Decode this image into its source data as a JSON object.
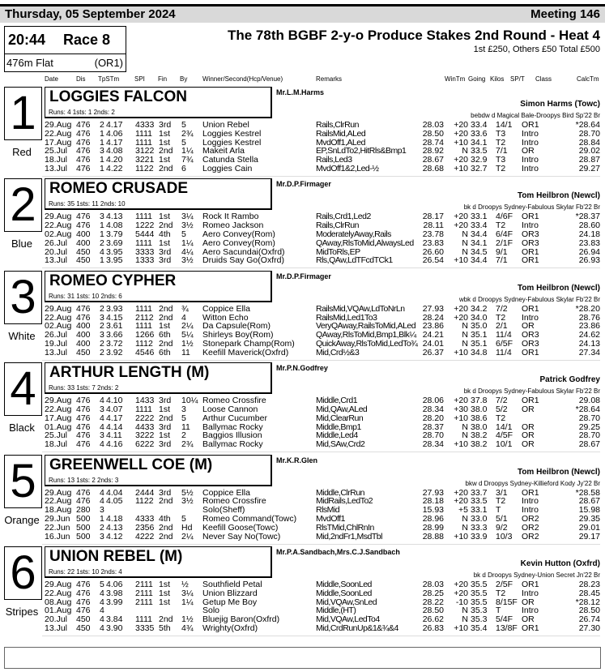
{
  "header": {
    "date": "Thursday, 05 September 2024",
    "meeting": "Meeting 146"
  },
  "race": {
    "time": "20:44",
    "number": "Race 8",
    "distance": "476m Flat",
    "grade": "(OR1)",
    "title": "The 78th BGBF 2-y-o Produce Stakes 2nd Round - Heat 4",
    "prize": "1st £250, Others £50 Total £500"
  },
  "columns": {
    "date": "Date",
    "dis": "Dis",
    "tpstm": "TpSTm",
    "spi": "SPI",
    "fin": "Fin",
    "by": "By",
    "winner": "Winner/Second(Hcp/Venue)",
    "remarks": "Remarks",
    "wintm": "WinTm",
    "going": "Going",
    "kilos": "Kilos",
    "spt": "SP/T",
    "class": "Class",
    "calctm": "CalcTm"
  },
  "runners": [
    {
      "trap": "1",
      "colour": "Red",
      "name": "LOGGIES FALCON",
      "runs": "Runs: 4 1sts: 1 2nds: 2",
      "owner": "Mr.L.M.Harms",
      "trainer": "Simon Harms (Towc)",
      "breeding": "bebdw d Magical Bale-Droopys Bird Sp'22 Br",
      "form": [
        [
          "29.Aug",
          "476",
          "2",
          "4.17",
          "4333",
          "3rd",
          "5",
          "Union Rebel",
          "Rails,ClrRun",
          "28.03",
          "+20",
          "33.4",
          "14/1",
          "OR1",
          "*28.64"
        ],
        [
          "22.Aug",
          "476",
          "1",
          "4.06",
          "1111",
          "1st",
          "2¾",
          "Loggies Kestrel",
          "RailsMid,ALed",
          "28.50",
          "+20",
          "33.6",
          "T3",
          "Intro",
          "28.70"
        ],
        [
          "17.Aug",
          "476",
          "1",
          "4.17",
          "1111",
          "1st",
          "5",
          "Loggies Kestrel",
          "MvdOff1,ALed",
          "28.74",
          "+10",
          "34.1",
          "T2",
          "Intro",
          "28.84"
        ],
        [
          "25.Jul",
          "476",
          "3",
          "4.08",
          "3122",
          "2nd",
          "1¼",
          "Makeit Arla",
          "EP,SnLdTo2,HitRls&Bmp1",
          "28.92",
          "N",
          "33.5",
          "7/1",
          "OR",
          "29.02"
        ],
        [
          "18.Jul",
          "476",
          "1",
          "4.20",
          "3221",
          "1st",
          "7¾",
          "Catunda Stella",
          "Rails,Led3",
          "28.67",
          "+20",
          "32.9",
          "T3",
          "Intro",
          "28.87"
        ],
        [
          "13.Jul",
          "476",
          "1",
          "4.22",
          "1122",
          "2nd",
          "6",
          "Loggies Cain",
          "MvdOff1&2,Led-½",
          "28.68",
          "+10",
          "32.7",
          "T2",
          "Intro",
          "29.27"
        ]
      ]
    },
    {
      "trap": "2",
      "colour": "Blue",
      "name": "ROMEO CRUSADE",
      "runs": "Runs: 35 1sts: 11 2nds: 10",
      "owner": "Mr.D.P.Firmager",
      "trainer": "Tom Heilbron (Newcl)",
      "breeding": "bk d Droopys Sydney-Fabulous Skylar Fb'22 Br",
      "form": [
        [
          "29.Aug",
          "476",
          "3",
          "4.13",
          "1111",
          "1st",
          "3¼",
          "Rock It Rambo",
          "Rails,Crd1,Led2",
          "28.17",
          "+20",
          "33.1",
          "4/6F",
          "OR1",
          "*28.37"
        ],
        [
          "22.Aug",
          "476",
          "1",
          "4.08",
          "1222",
          "2nd",
          "3½",
          "Romeo Jackson",
          "Rails,ClrRun",
          "28.11",
          "+20",
          "33.4",
          "T2",
          "Intro",
          "28.60"
        ],
        [
          "02.Aug",
          "400",
          "1",
          "3.79",
          "5444",
          "4th",
          "5",
          "Aero Convey(Rom)",
          "ModeratelyAway,Rails",
          "23.78",
          "N",
          "34.4",
          "6/4F",
          "OR3",
          "24.18"
        ],
        [
          "26.Jul",
          "400",
          "2",
          "3.69",
          "1111",
          "1st",
          "1¼",
          "Aero Convey(Rom)",
          "QAway,RlsToMid,AlwaysLed",
          "23.83",
          "N",
          "34.1",
          "2/1F",
          "OR3",
          "23.83"
        ],
        [
          "20.Jul",
          "450",
          "4",
          "3.95",
          "3333",
          "3rd",
          "4¼",
          "Aero Sacundai(Oxfrd)",
          "MidToRls,EP",
          "26.60",
          "N",
          "34.5",
          "9/1",
          "OR1",
          "26.94"
        ],
        [
          "13.Jul",
          "450",
          "1",
          "3.95",
          "1333",
          "3rd",
          "3½",
          "Druids Say Go(Oxfrd)",
          "Rls,QAw,LdTFcdTCk1",
          "26.54",
          "+10",
          "34.4",
          "7/1",
          "OR1",
          "26.93"
        ]
      ]
    },
    {
      "trap": "3",
      "colour": "White",
      "name": "ROMEO CYPHER",
      "runs": "Runs: 31 1sts: 10 2nds: 6",
      "owner": "Mr.D.P.Firmager",
      "trainer": "Tom Heilbron (Newcl)",
      "breeding": "wbk d Droopys Sydney-Fabulous Skylar Fb'22 Br",
      "form": [
        [
          "29.Aug",
          "476",
          "2",
          "3.93",
          "1111",
          "2nd",
          "¾",
          "Coppice Ella",
          "RailsMid,VQAw,LdToNrLn",
          "27.93",
          "+20",
          "34.2",
          "7/2",
          "OR1",
          "*28.20"
        ],
        [
          "22.Aug",
          "476",
          "3",
          "4.15",
          "2112",
          "2nd",
          "4",
          "Witton Echo",
          "RailsMid,Led1To3",
          "28.24",
          "+20",
          "34.0",
          "T2",
          "Intro",
          "28.76"
        ],
        [
          "02.Aug",
          "400",
          "2",
          "3.61",
          "1111",
          "1st",
          "2¼",
          "Da Capsule(Rom)",
          "VeryQAway,RailsToMid,ALed",
          "23.86",
          "N",
          "35.0",
          "2/1",
          "OR",
          "23.86"
        ],
        [
          "26.Jul",
          "400",
          "3",
          "3.66",
          "1266",
          "6th",
          "5¼",
          "Shirleys Boy(Rom)",
          "QAway,RlsToMid,Bmp1,Blk¼",
          "24.21",
          "N",
          "35.1",
          "11/4",
          "OR3",
          "24.62"
        ],
        [
          "19.Jul",
          "400",
          "2",
          "3.72",
          "1112",
          "2nd",
          "1½",
          "Stonepark Champ(Rom)",
          "QuickAway,RlsToMid,LedTo¾",
          "24.01",
          "N",
          "35.1",
          "6/5F",
          "OR3",
          "24.13"
        ],
        [
          "13.Jul",
          "450",
          "2",
          "3.92",
          "4546",
          "6th",
          "11",
          "Keefill Maverick(Oxfrd)",
          "Mid,Crd½&3",
          "26.37",
          "+10",
          "34.8",
          "11/4",
          "OR1",
          "27.34"
        ]
      ]
    },
    {
      "trap": "4",
      "colour": "Black",
      "name": "ARTHUR LENGTH (M)",
      "runs": "Runs: 33 1sts: 7 2nds: 2",
      "owner": "Mr.P.N.Godfrey",
      "trainer": "Patrick Godfrey",
      "breeding": "bk d Droopys Sydney-Fabulous Skylar Fb'22 Br",
      "form": [
        [
          "29.Aug",
          "476",
          "4",
          "4.10",
          "1433",
          "3rd",
          "10¼",
          "Romeo Crossfire",
          "Middle,Crd1",
          "28.06",
          "+20",
          "37.8",
          "7/2",
          "OR1",
          "29.08"
        ],
        [
          "22.Aug",
          "476",
          "3",
          "4.07",
          "1111",
          "1st",
          "3",
          "Loose Cannon",
          "Mid,QAw,ALed",
          "28.34",
          "+30",
          "38.0",
          "5/2",
          "OR",
          "*28.64"
        ],
        [
          "17.Aug",
          "476",
          "4",
          "4.17",
          "2222",
          "2nd",
          "5",
          "Arthur Cucumber",
          "Mid,ClearRun",
          "28.20",
          "+10",
          "38.6",
          "T2",
          "",
          "28.70"
        ],
        [
          "01.Aug",
          "476",
          "4",
          "4.14",
          "4433",
          "3rd",
          "11",
          "Ballymac Rocky",
          "Middle,Bmp1",
          "28.37",
          "N",
          "38.0",
          "14/1",
          "OR",
          "29.25"
        ],
        [
          "25.Jul",
          "476",
          "3",
          "4.11",
          "3222",
          "1st",
          "2",
          "Baggios Illusion",
          "Middle,Led4",
          "28.70",
          "N",
          "38.2",
          "4/5F",
          "OR",
          "28.70"
        ],
        [
          "18.Jul",
          "476",
          "4",
          "4.16",
          "6222",
          "3rd",
          "2¾",
          "Ballymac Rocky",
          "Mid,SAw,Crd2",
          "28.34",
          "+10",
          "38.2",
          "10/1",
          "OR",
          "28.67"
        ]
      ]
    },
    {
      "trap": "5",
      "colour": "Orange",
      "name": "GREENWELL COE (M)",
      "runs": "Runs: 13 1sts: 2 2nds: 3",
      "owner": "Mr.K.R.Glen",
      "trainer": "Tom Heilbron (Newcl)",
      "breeding": "bkw d Droopys Sydney-Killieford Kody Jy'22 Br",
      "form": [
        [
          "29.Aug",
          "476",
          "4",
          "4.04",
          "2444",
          "3rd",
          "5½",
          "Coppice Ella",
          "Middle,ClrRun",
          "27.93",
          "+20",
          "33.7",
          "3/1",
          "OR1",
          "*28.58"
        ],
        [
          "22.Aug",
          "476",
          "4",
          "4.05",
          "1122",
          "2nd",
          "3½",
          "Romeo Crossfire",
          "MidRails,LedTo2",
          "28.18",
          "+20",
          "33.5",
          "T2",
          "Intro",
          "28.67"
        ],
        [
          "18.Aug",
          "280",
          "3",
          "",
          "",
          "",
          "",
          "Solo(Sheff)",
          "RlsMid",
          "15.93",
          "+5",
          "33.1",
          "T",
          "Intro",
          "15.98"
        ],
        [
          "29.Jun",
          "500",
          "1",
          "4.18",
          "4333",
          "4th",
          "5",
          "Romeo Command(Towc)",
          "MvdOff1",
          "28.96",
          "N",
          "33.0",
          "5/1",
          "OR2",
          "29.35"
        ],
        [
          "22.Jun",
          "500",
          "2",
          "4.13",
          "2356",
          "2nd",
          "Hd",
          "Keefill Goose(Towc)",
          "RlsTMid,ChlRnIn",
          "28.99",
          "N",
          "33.3",
          "9/2",
          "OR2",
          "29.01"
        ],
        [
          "16.Jun",
          "500",
          "3",
          "4.12",
          "4222",
          "2nd",
          "2¼",
          "Never Say No(Towc)",
          "Mid,2ndFr1,MsdTbl",
          "28.88",
          "+10",
          "33.9",
          "10/3",
          "OR2",
          "29.17"
        ]
      ]
    },
    {
      "trap": "6",
      "colour": "Stripes",
      "name": "UNION REBEL (M)",
      "runs": "Runs: 22 1sts: 10 2nds: 4",
      "owner": "Mr.P.A.Sandbach,Mrs.C.J.Sandbach",
      "trainer": "Kevin Hutton (Oxfrd)",
      "breeding": "bk d Droopys Sydney-Union Secret Jn'22 Br",
      "form": [
        [
          "29.Aug",
          "476",
          "5",
          "4.06",
          "2111",
          "1st",
          "½",
          "Southfield Petal",
          "Middle,SoonLed",
          "28.03",
          "+20",
          "35.5",
          "2/5F",
          "OR1",
          "28.23"
        ],
        [
          "22.Aug",
          "476",
          "4",
          "3.98",
          "2111",
          "1st",
          "3¼",
          "Union Blizzard",
          "Middle,SoonLed",
          "28.25",
          "+20",
          "35.5",
          "T2",
          "Intro",
          "28.45"
        ],
        [
          "08.Aug",
          "476",
          "4",
          "3.99",
          "2111",
          "1st",
          "1¼",
          "Getup Me Boy",
          "Mid,VQAw,SnLed",
          "28.22",
          "-10",
          "35.5",
          "8/15F",
          "OR",
          "*28.12"
        ],
        [
          "01.Aug",
          "476",
          "4",
          "",
          "",
          "",
          "",
          "Solo",
          "Middle,(HT)",
          "28.50",
          "N",
          "35.3",
          "T",
          "Intro",
          "28.50"
        ],
        [
          "20.Jul",
          "450",
          "4",
          "3.84",
          "1111",
          "2nd",
          "1½",
          "Bluejig Baron(Oxfrd)",
          "Mid,VQAw,LedTo4",
          "26.62",
          "N",
          "35.3",
          "5/4F",
          "OR",
          "26.74"
        ],
        [
          "13.Jul",
          "450",
          "4",
          "3.90",
          "3335",
          "5th",
          "4¾",
          "Wrighty(Oxfrd)",
          "Mid,CrdRunUp&1&¾&4",
          "26.83",
          "+10",
          "35.4",
          "13/8F",
          "OR1",
          "27.30"
        ]
      ]
    }
  ]
}
